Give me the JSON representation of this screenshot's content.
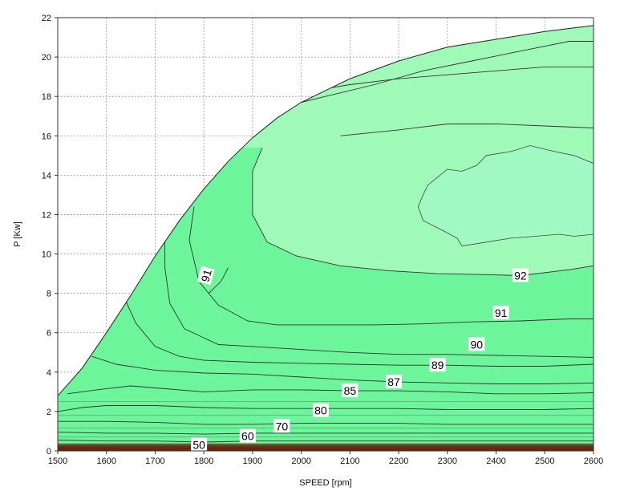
{
  "chart_data": {
    "type": "contour",
    "xlabel": "SPEED [rpm]",
    "ylabel": "P [Kw]",
    "xlim": [
      1500,
      2600
    ],
    "ylim": [
      0,
      22
    ],
    "x_ticks": [
      "1500",
      "1600",
      "1700",
      "1800",
      "1900",
      "2000",
      "2100",
      "2200",
      "2300",
      "2400",
      "2500",
      "2600"
    ],
    "y_ticks": [
      "0",
      "2",
      "4",
      "6",
      "8",
      "10",
      "12",
      "14",
      "16",
      "18",
      "20",
      "22"
    ],
    "grid": true,
    "boundary": [
      [
        1500,
        2.8
      ],
      [
        1550,
        4.2
      ],
      [
        1600,
        6.0
      ],
      [
        1650,
        7.9
      ],
      [
        1700,
        9.9
      ],
      [
        1750,
        11.7
      ],
      [
        1800,
        13.3
      ],
      [
        1850,
        14.7
      ],
      [
        1900,
        15.9
      ],
      [
        1950,
        16.9
      ],
      [
        2000,
        17.7
      ],
      [
        2100,
        18.9
      ],
      [
        2200,
        19.8
      ],
      [
        2300,
        20.5
      ],
      [
        2400,
        20.9
      ],
      [
        2500,
        21.3
      ],
      [
        2600,
        21.6
      ]
    ],
    "colors": {
      "under_50": "#8c1a00",
      "50_70": "#d43f00",
      "70_80": "#ec5a08",
      "80_85": "#f68a0e",
      "85_87": "#fdbb14",
      "87_89": "#f5f400",
      "89_90": "#7ec31c",
      "90_91": "#22d96e",
      "91_92": "#6cf59a",
      "over_92": "#a0fab7",
      "region_92": "#a0f8c2"
    },
    "contours": [
      {
        "level": "50",
        "pts": [
          [
            1500,
            0.55
          ],
          [
            1600,
            0.5
          ],
          [
            1700,
            0.5
          ],
          [
            1800,
            0.45
          ],
          [
            1900,
            0.5
          ],
          [
            2000,
            0.5
          ],
          [
            2100,
            0.5
          ],
          [
            2200,
            0.5
          ],
          [
            2300,
            0.5
          ],
          [
            2400,
            0.5
          ],
          [
            2500,
            0.5
          ],
          [
            2600,
            0.5
          ]
        ],
        "label_at": [
          1790,
          0.3
        ]
      },
      {
        "level": "60",
        "pts": [
          [
            1500,
            0.95
          ],
          [
            1600,
            0.9
          ],
          [
            1700,
            0.9
          ],
          [
            1800,
            0.85
          ],
          [
            1900,
            0.9
          ],
          [
            2000,
            0.9
          ],
          [
            2100,
            0.9
          ],
          [
            2200,
            0.9
          ],
          [
            2300,
            0.9
          ],
          [
            2400,
            0.9
          ],
          [
            2500,
            0.9
          ],
          [
            2600,
            0.9
          ]
        ],
        "label_at": [
          1890,
          0.75
        ]
      },
      {
        "level": "70",
        "pts": [
          [
            1500,
            1.5
          ],
          [
            1600,
            1.5
          ],
          [
            1700,
            1.45
          ],
          [
            1800,
            1.35
          ],
          [
            1900,
            1.35
          ],
          [
            2000,
            1.4
          ],
          [
            2100,
            1.4
          ],
          [
            2200,
            1.4
          ],
          [
            2300,
            1.35
          ],
          [
            2400,
            1.35
          ],
          [
            2500,
            1.35
          ],
          [
            2600,
            1.35
          ]
        ],
        "label_at": [
          1960,
          1.25
        ]
      },
      {
        "level": "80",
        "pts": [
          [
            1500,
            2.0
          ],
          [
            1550,
            2.2
          ],
          [
            1600,
            2.3
          ],
          [
            1700,
            2.3
          ],
          [
            1800,
            2.2
          ],
          [
            1900,
            2.15
          ],
          [
            2000,
            2.15
          ],
          [
            2100,
            2.15
          ],
          [
            2200,
            2.15
          ],
          [
            2300,
            2.1
          ],
          [
            2400,
            2.1
          ],
          [
            2500,
            2.1
          ],
          [
            2600,
            2.15
          ]
        ],
        "label_at": [
          2040,
          2.05
        ]
      },
      {
        "level": "85",
        "pts": [
          [
            1520,
            2.9
          ],
          [
            1580,
            3.1
          ],
          [
            1650,
            3.3
          ],
          [
            1700,
            3.2
          ],
          [
            1800,
            3.0
          ],
          [
            1900,
            3.1
          ],
          [
            2000,
            3.1
          ],
          [
            2100,
            3.05
          ],
          [
            2200,
            3.05
          ],
          [
            2300,
            3.0
          ],
          [
            2400,
            2.9
          ],
          [
            2500,
            2.9
          ],
          [
            2600,
            2.95
          ]
        ],
        "label_at": [
          2100,
          3.05
        ]
      },
      {
        "level": "87",
        "pts": [
          [
            1570,
            4.8
          ],
          [
            1620,
            4.4
          ],
          [
            1700,
            4.1
          ],
          [
            1800,
            3.95
          ],
          [
            1900,
            3.9
          ],
          [
            2000,
            3.75
          ],
          [
            2100,
            3.6
          ],
          [
            2200,
            3.5
          ],
          [
            2300,
            3.45
          ],
          [
            2400,
            3.4
          ],
          [
            2500,
            3.4
          ],
          [
            2600,
            3.45
          ]
        ],
        "label_at": [
          2190,
          3.5
        ]
      },
      {
        "level": "89",
        "pts": [
          [
            1640,
            7.6
          ],
          [
            1660,
            6.5
          ],
          [
            1700,
            5.3
          ],
          [
            1750,
            4.8
          ],
          [
            1800,
            4.6
          ],
          [
            1900,
            4.5
          ],
          [
            2000,
            4.45
          ],
          [
            2100,
            4.4
          ],
          [
            2200,
            4.35
          ],
          [
            2300,
            4.35
          ],
          [
            2400,
            4.3
          ],
          [
            2500,
            4.3
          ],
          [
            2600,
            4.4
          ]
        ],
        "label_at": [
          2280,
          4.35
        ]
      },
      {
        "level": "90",
        "pts": [
          [
            1720,
            10.8
          ],
          [
            1720,
            9.3
          ],
          [
            1730,
            7.5
          ],
          [
            1760,
            6.2
          ],
          [
            1830,
            5.4
          ],
          [
            1900,
            5.3
          ],
          [
            2000,
            5.15
          ],
          [
            2100,
            5.0
          ],
          [
            2200,
            4.9
          ],
          [
            2300,
            4.9
          ],
          [
            2400,
            4.85
          ],
          [
            2500,
            4.8
          ],
          [
            2600,
            4.75
          ]
        ],
        "label_at": [
          2360,
          5.4
        ]
      },
      {
        "level": "91",
        "pts": [
          [
            1780,
            12.4
          ],
          [
            1770,
            10.7
          ],
          [
            1790,
            8.6
          ],
          [
            1830,
            7.4
          ],
          [
            1890,
            6.6
          ],
          [
            1950,
            6.4
          ],
          [
            2050,
            6.4
          ],
          [
            2150,
            6.4
          ],
          [
            2250,
            6.45
          ],
          [
            2350,
            6.55
          ],
          [
            2450,
            6.6
          ],
          [
            2550,
            6.7
          ],
          [
            2600,
            6.7
          ]
        ],
        "label_at": [
          2410,
          7.0
        ]
      },
      {
        "level": "92",
        "pts": [
          [
            1920,
            15.4
          ],
          [
            1900,
            14.2
          ],
          [
            1900,
            12.0
          ],
          [
            1930,
            10.6
          ],
          [
            1990,
            9.9
          ],
          [
            2080,
            9.4
          ],
          [
            2180,
            9.15
          ],
          [
            2280,
            9.0
          ],
          [
            2380,
            8.95
          ],
          [
            2450,
            8.9
          ],
          [
            2550,
            9.2
          ],
          [
            2600,
            9.4
          ]
        ],
        "label_at": [
          2450,
          8.9
        ]
      },
      {
        "level": "",
        "pts": [
          [
            1810,
            8.0
          ],
          [
            1835,
            8.6
          ],
          [
            1850,
            9.3
          ]
        ]
      },
      {
        "level": "",
        "pts": [
          [
            2080,
            16.0
          ],
          [
            2200,
            16.3
          ],
          [
            2300,
            16.6
          ],
          [
            2400,
            16.6
          ],
          [
            2500,
            16.5
          ],
          [
            2600,
            16.4
          ]
        ]
      },
      {
        "level": "",
        "pts": [
          [
            2000,
            18.2
          ],
          [
            2100,
            18.6
          ],
          [
            2200,
            18.9
          ],
          [
            2300,
            19.1
          ],
          [
            2400,
            19.3
          ],
          [
            2500,
            19.5
          ],
          [
            2600,
            19.5
          ]
        ]
      },
      {
        "level": "",
        "pts": [
          [
            1950,
            17.4
          ],
          [
            2050,
            18.0
          ],
          [
            2150,
            18.6
          ],
          [
            2250,
            19.3
          ],
          [
            2350,
            19.8
          ],
          [
            2450,
            20.3
          ],
          [
            2550,
            20.8
          ],
          [
            2600,
            20.8
          ]
        ]
      }
    ],
    "label_91_small": {
      "text": "91",
      "at": [
        1805,
        8.9
      ]
    },
    "region_92": [
      [
        2250,
        11.7
      ],
      [
        2290,
        11.2
      ],
      [
        2320,
        10.8
      ],
      [
        2330,
        10.4
      ],
      [
        2380,
        10.6
      ],
      [
        2430,
        10.8
      ],
      [
        2480,
        10.9
      ],
      [
        2530,
        11.0
      ],
      [
        2560,
        10.9
      ],
      [
        2600,
        11.0
      ],
      [
        2600,
        14.6
      ],
      [
        2560,
        15.0
      ],
      [
        2520,
        15.2
      ],
      [
        2470,
        15.5
      ],
      [
        2430,
        15.2
      ],
      [
        2380,
        15.0
      ],
      [
        2360,
        14.5
      ],
      [
        2330,
        14.2
      ],
      [
        2300,
        14.3
      ],
      [
        2280,
        13.9
      ],
      [
        2260,
        13.5
      ],
      [
        2250,
        13.0
      ],
      [
        2240,
        12.4
      ]
    ]
  }
}
